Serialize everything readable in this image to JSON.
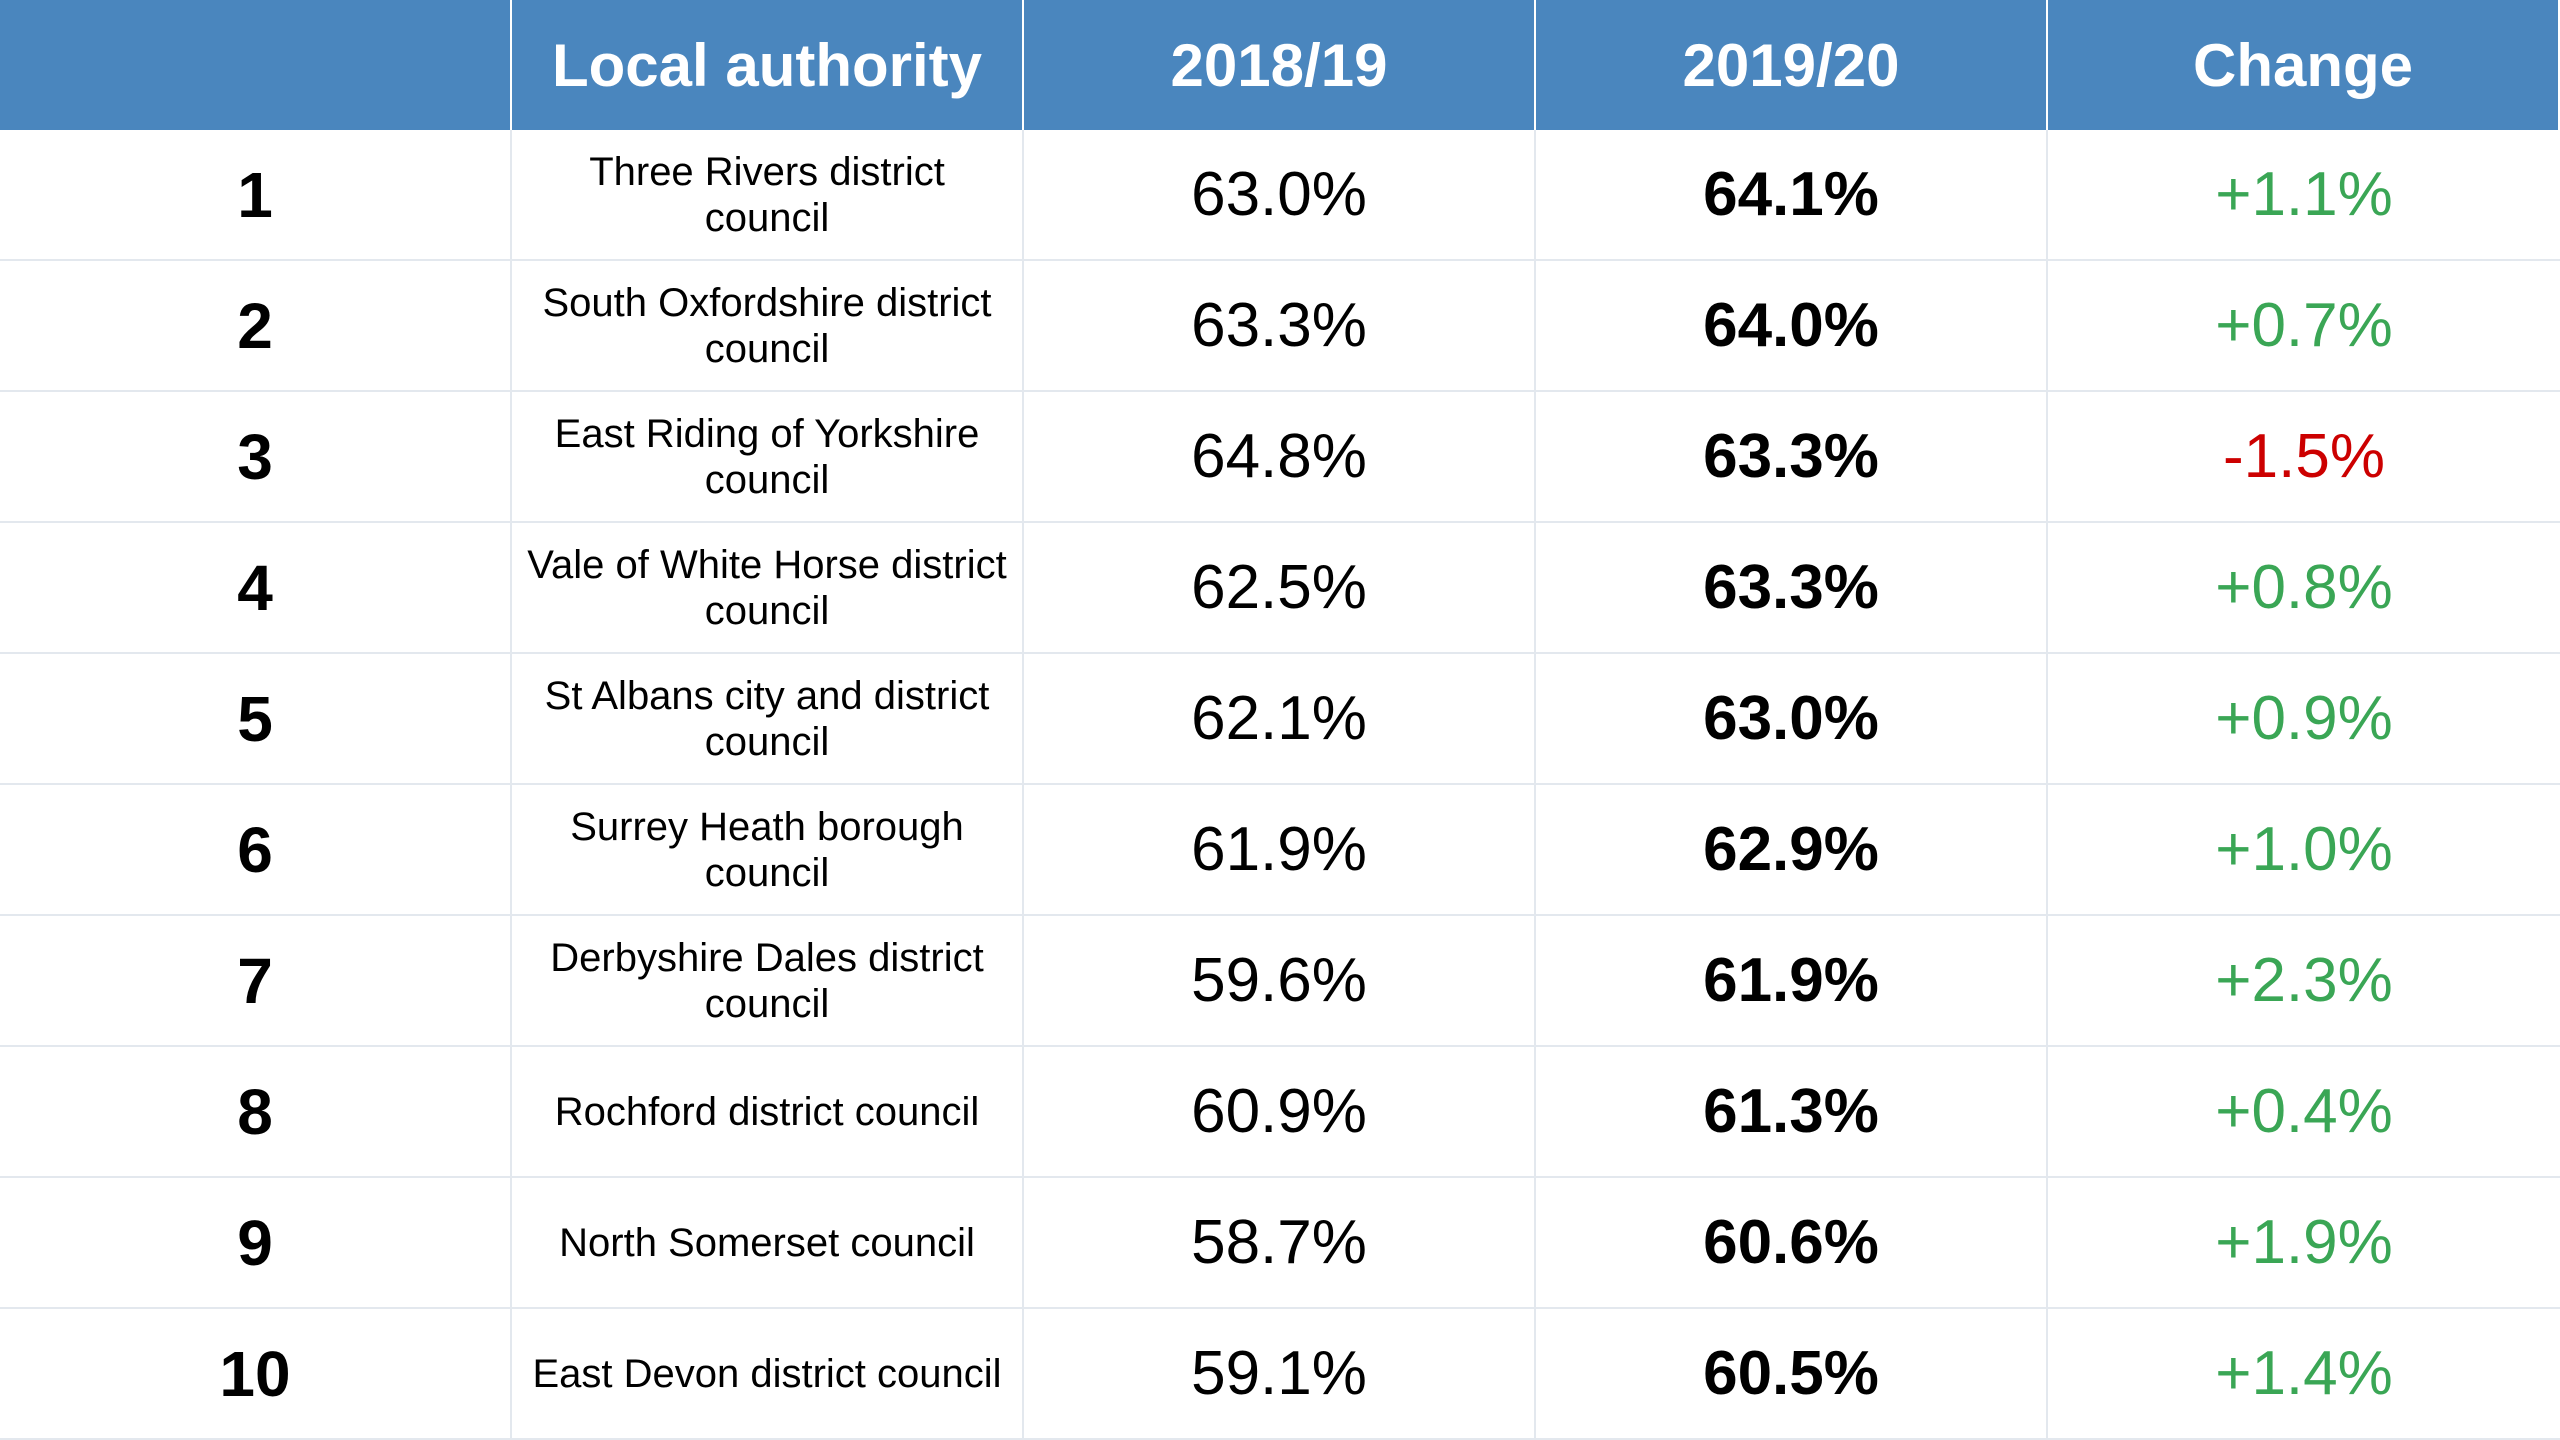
{
  "header": {
    "rank": "",
    "authority": "Local authority",
    "y2018": "2018/19",
    "y2019": "2019/20",
    "change": "Change"
  },
  "colors": {
    "header_bg": "#4a86be",
    "positive": "#3aa655",
    "negative": "#cc0000",
    "grid": "#e3e8ee"
  },
  "rows": [
    {
      "rank": "1",
      "authority": "Three Rivers district council",
      "y2018": "63.0%",
      "y2019": "64.1%",
      "change": "+1.1%",
      "trend": "pos"
    },
    {
      "rank": "2",
      "authority": "South Oxfordshire district council",
      "y2018": "63.3%",
      "y2019": "64.0%",
      "change": "+0.7%",
      "trend": "pos"
    },
    {
      "rank": "3",
      "authority": "East Riding of Yorkshire council",
      "y2018": "64.8%",
      "y2019": "63.3%",
      "change": "-1.5%",
      "trend": "neg"
    },
    {
      "rank": "4",
      "authority": "Vale of White Horse district council",
      "y2018": "62.5%",
      "y2019": "63.3%",
      "change": "+0.8%",
      "trend": "pos"
    },
    {
      "rank": "5",
      "authority": "St Albans city and district council",
      "y2018": "62.1%",
      "y2019": "63.0%",
      "change": "+0.9%",
      "trend": "pos"
    },
    {
      "rank": "6",
      "authority": "Surrey Heath borough council",
      "y2018": "61.9%",
      "y2019": "62.9%",
      "change": "+1.0%",
      "trend": "pos"
    },
    {
      "rank": "7",
      "authority": "Derbyshire Dales district council",
      "y2018": "59.6%",
      "y2019": "61.9%",
      "change": "+2.3%",
      "trend": "pos"
    },
    {
      "rank": "8",
      "authority": "Rochford district council",
      "y2018": "60.9%",
      "y2019": "61.3%",
      "change": "+0.4%",
      "trend": "pos"
    },
    {
      "rank": "9",
      "authority": "North Somerset council",
      "y2018": "58.7%",
      "y2019": "60.6%",
      "change": "+1.9%",
      "trend": "pos"
    },
    {
      "rank": "10",
      "authority": "East Devon district council",
      "y2018": "59.1%",
      "y2019": "60.5%",
      "change": "+1.4%",
      "trend": "pos"
    }
  ]
}
